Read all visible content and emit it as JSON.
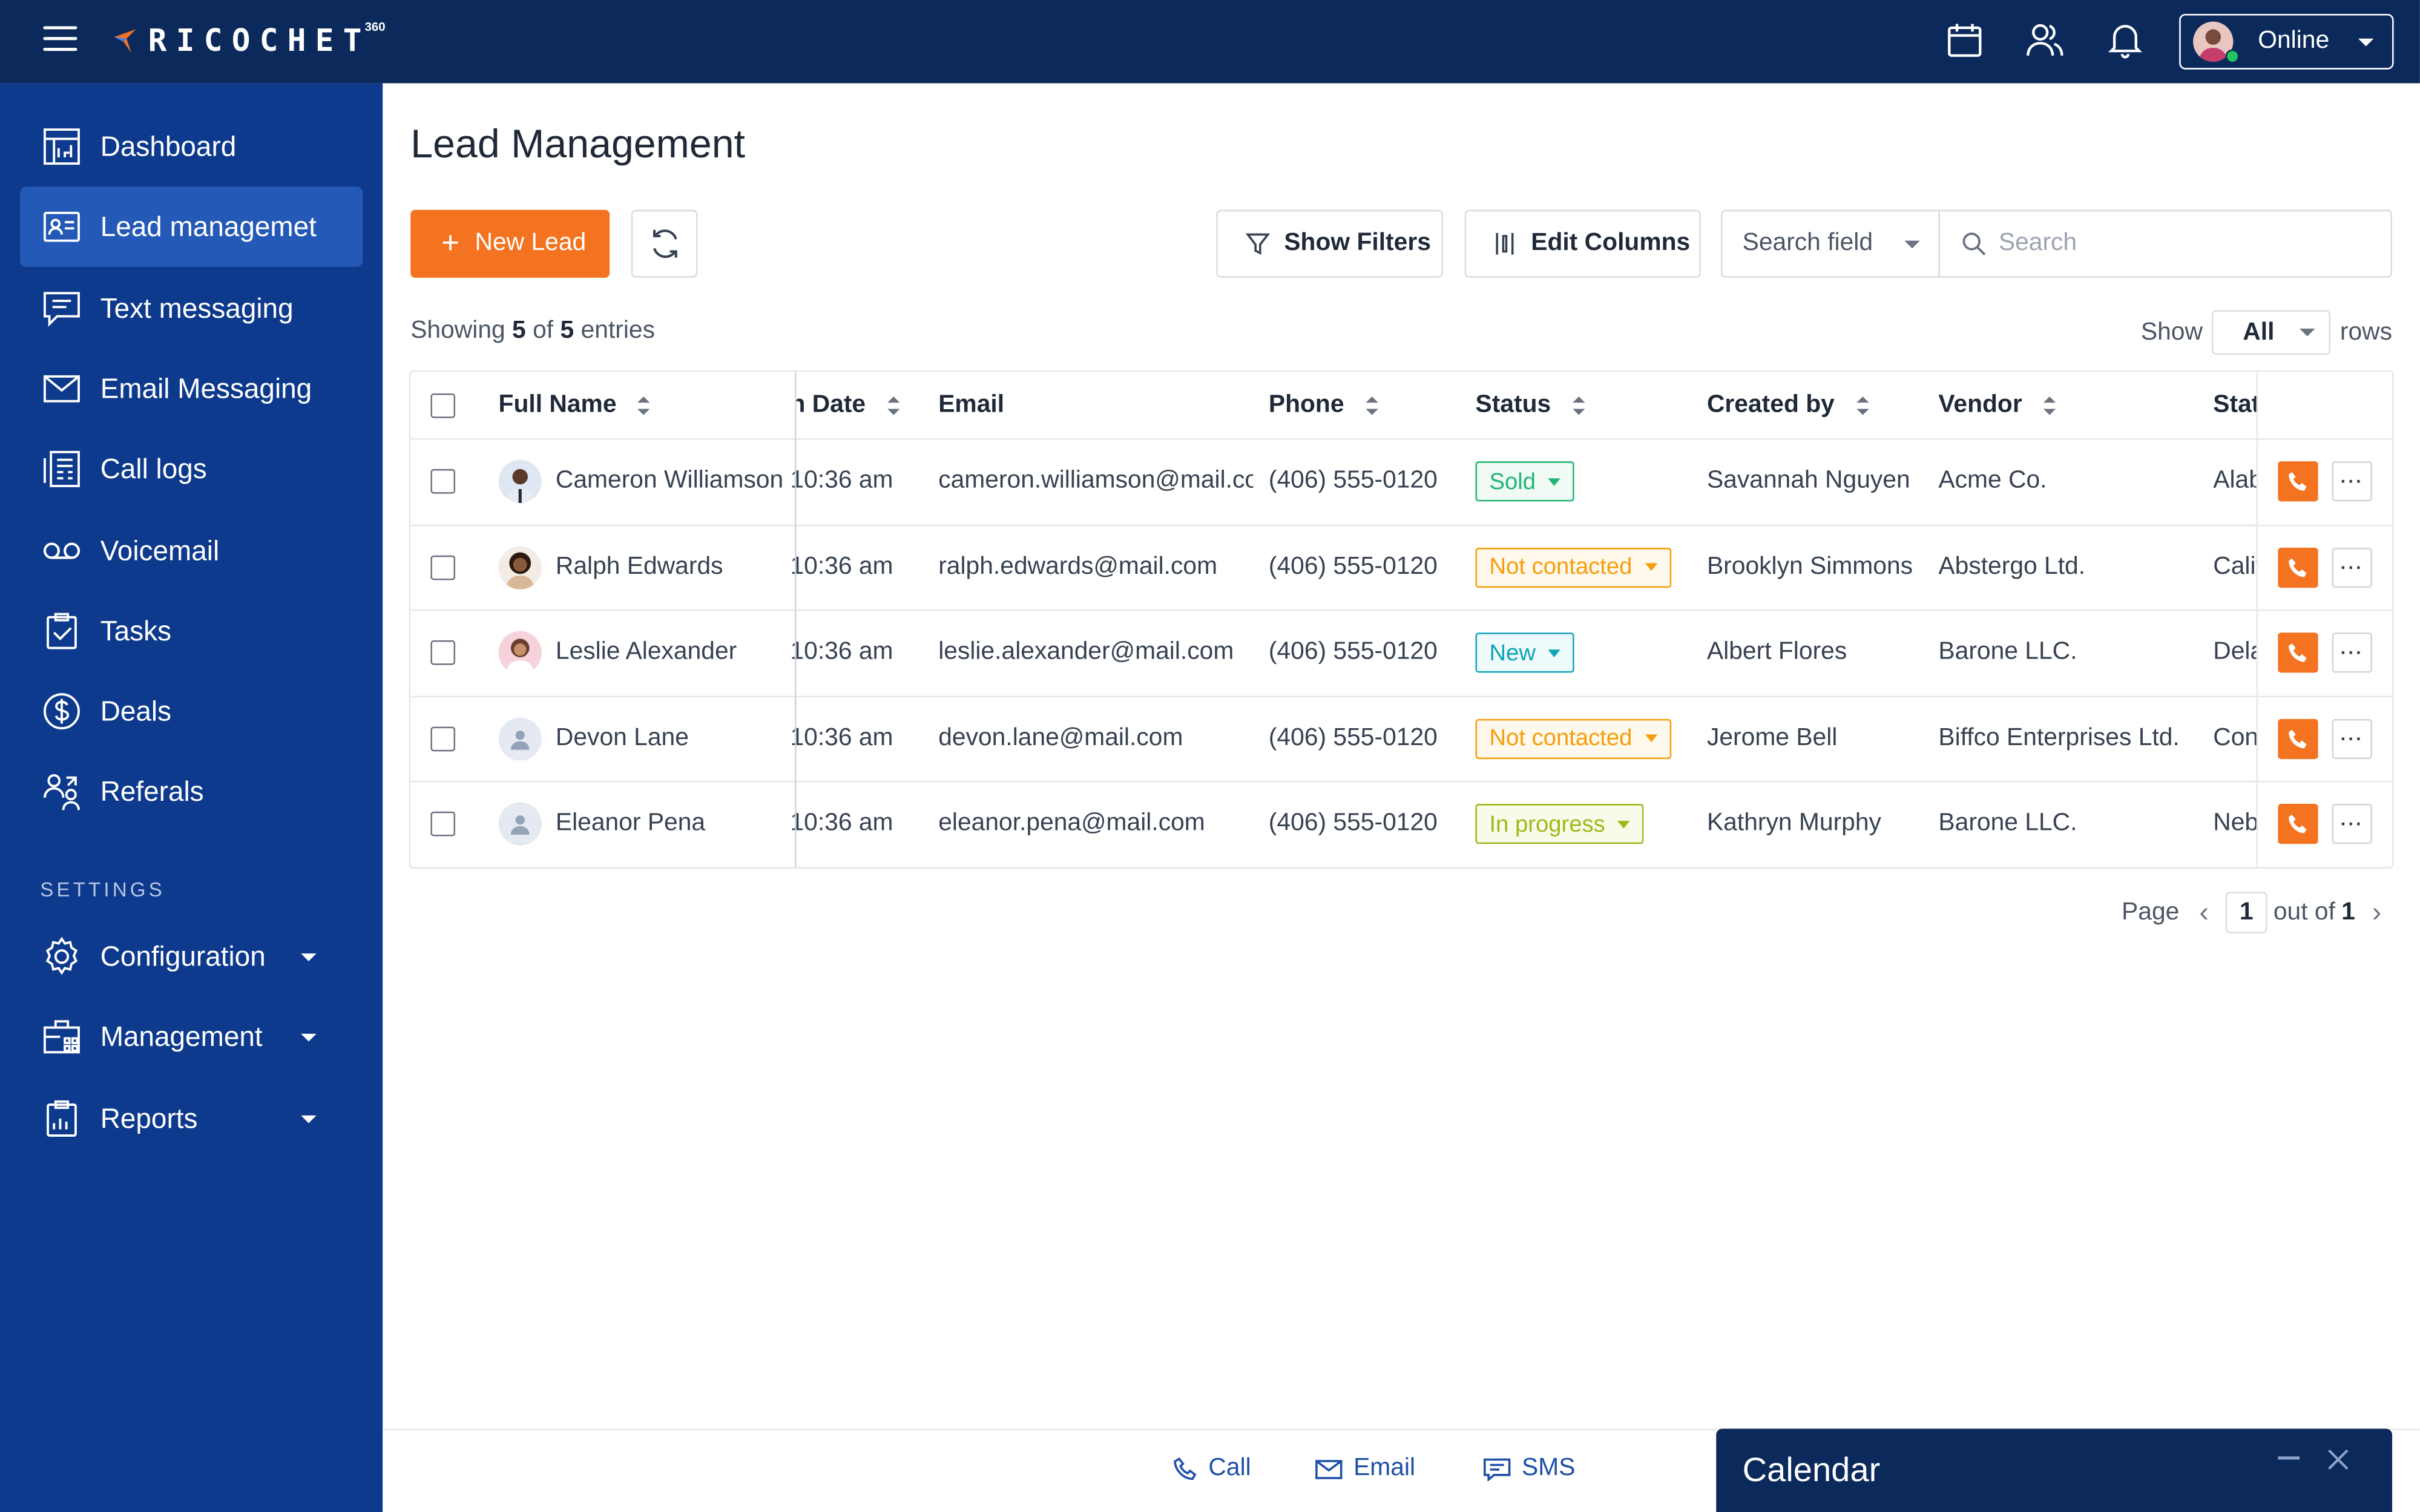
{
  "app": {
    "brand": "RICOCHET",
    "brand_sup": "360"
  },
  "topbar": {
    "status_label": "Online",
    "icons": [
      "menu-icon",
      "calendar-icon",
      "users-icon",
      "bell-icon"
    ]
  },
  "sidebar": {
    "items": [
      {
        "label": "Dashboard",
        "icon": "dashboard-icon"
      },
      {
        "label": "Lead managemet",
        "icon": "lead-card-icon",
        "active": true
      },
      {
        "label": "Text messaging",
        "icon": "chat-icon"
      },
      {
        "label": "Email Messaging",
        "icon": "envelope-icon"
      },
      {
        "label": "Call logs",
        "icon": "call-log-icon"
      },
      {
        "label": "Voicemail",
        "icon": "voicemail-icon"
      },
      {
        "label": "Tasks",
        "icon": "clipboard-check-icon"
      },
      {
        "label": "Deals",
        "icon": "dollar-icon"
      },
      {
        "label": "Referals",
        "icon": "referrals-icon"
      }
    ],
    "settings_heading": "SETTINGS",
    "settings_items": [
      {
        "label": "Configuration",
        "icon": "gear-icon"
      },
      {
        "label": "Management",
        "icon": "management-icon"
      },
      {
        "label": "Reports",
        "icon": "reports-icon"
      }
    ]
  },
  "main": {
    "title": "Lead Management",
    "new_lead_label": "New Lead",
    "show_filters_label": "Show Filters",
    "edit_columns_label": "Edit Columns",
    "search_field_label": "Search field",
    "search_placeholder": "Search",
    "showing_prefix": "Showing",
    "showing_count": "5",
    "showing_of": "of",
    "showing_total": "5",
    "showing_suffix": "entries",
    "rows_show": "Show",
    "rows_value": "All",
    "rows_suffix": "rows"
  },
  "table": {
    "columns": [
      "Full Name",
      "n Date",
      "Email",
      "Phone",
      "Status",
      "Created by",
      "Vendor",
      "Stat"
    ],
    "rows": [
      {
        "name": "Cameron Williamson",
        "date": "10:36 am",
        "email": "cameron.williamson@mail.co",
        "phone": "(406) 555-0120",
        "status": "Sold",
        "created_by": "Savannah Nguyen",
        "vendor": "Acme Co.",
        "state": "Alab"
      },
      {
        "name": "Ralph Edwards",
        "date": "10:36 am",
        "email": "ralph.edwards@mail.com",
        "phone": "(406) 555-0120",
        "status": "Not contacted",
        "created_by": "Brooklyn Simmons",
        "vendor": "Abstergo Ltd.",
        "state": "Calif"
      },
      {
        "name": "Leslie Alexander",
        "date": "10:36 am",
        "email": "leslie.alexander@mail.com",
        "phone": "(406) 555-0120",
        "status": "New",
        "created_by": "Albert Flores",
        "vendor": "Barone LLC.",
        "state": "Dela"
      },
      {
        "name": "Devon Lane",
        "date": "10:36 am",
        "email": "devon.lane@mail.com",
        "phone": "(406) 555-0120",
        "status": "Not contacted",
        "created_by": "Jerome Bell",
        "vendor": "Biffco Enterprises Ltd.",
        "state": "Conn"
      },
      {
        "name": "Eleanor Pena",
        "date": "10:36 am",
        "email": "eleanor.pena@mail.com",
        "phone": "(406) 555-0120",
        "status": "In progress",
        "created_by": "Kathryn Murphy",
        "vendor": "Barone LLC.",
        "state": "Neb"
      }
    ]
  },
  "pager": {
    "page_label": "Page",
    "page_value": "1",
    "out_of_label": "out of",
    "total_pages": "1"
  },
  "bottombar": {
    "call_label": "Call",
    "email_label": "Email",
    "sms_label": "SMS"
  },
  "calendar_panel": {
    "title": "Calendar"
  },
  "colors": {
    "topbar": "#0b2a5b",
    "sidebar": "#0d3a8c",
    "sidebar_active": "#2459b7",
    "accent": "#f47321",
    "link": "#1d4fa8",
    "status_sold": "#22b573",
    "status_not_contacted": "#f59e0b",
    "status_new": "#0ea5b7",
    "status_in_progress": "#a3b719"
  }
}
